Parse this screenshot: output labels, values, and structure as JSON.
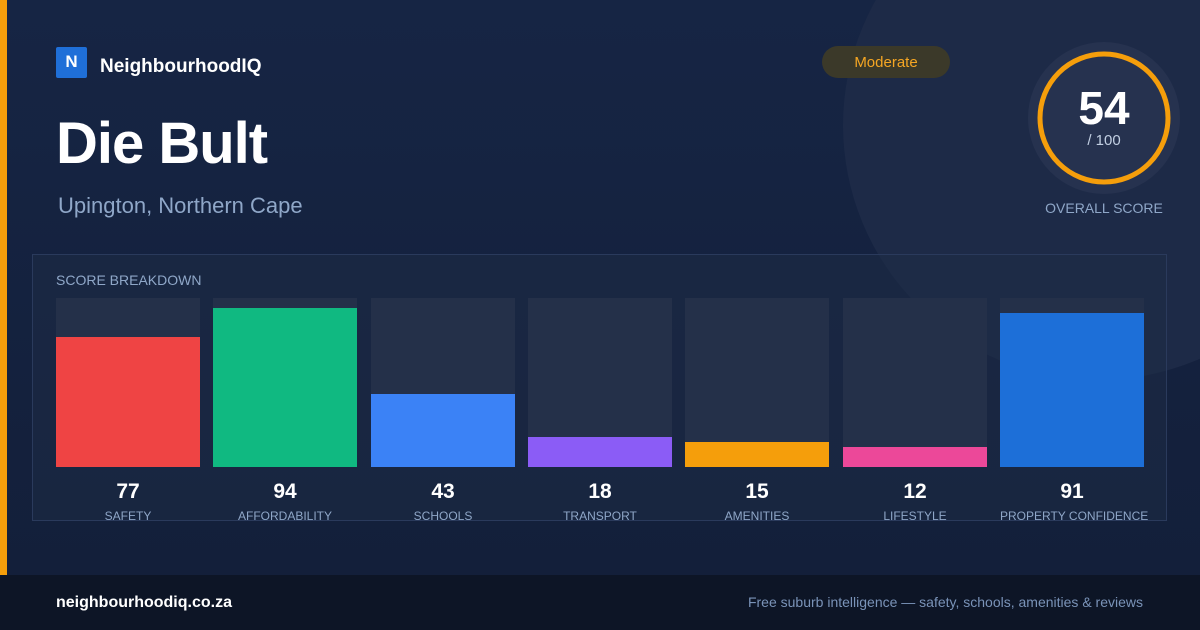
{
  "brand": {
    "logo_letter": "N",
    "name": "NeighbourhoodIQ",
    "logo_color": "#1f6fd8"
  },
  "suburb": {
    "name": "Die Bult",
    "location": "Upington, Northern Cape"
  },
  "rating_badge": {
    "label": "Moderate",
    "color": "#f5a623"
  },
  "overall_score": {
    "value": 54,
    "value_text": "54",
    "max_text": "/ 100",
    "label": "OVERALL SCORE",
    "ring_color": "#f59e0b",
    "max": 100
  },
  "breakdown": {
    "title": "SCORE BREAKDOWN",
    "items": [
      {
        "label": "SAFETY",
        "value": 77,
        "value_text": "77",
        "color": "#ef4444"
      },
      {
        "label": "AFFORDABILITY",
        "value": 94,
        "value_text": "94",
        "color": "#10b981"
      },
      {
        "label": "SCHOOLS",
        "value": 43,
        "value_text": "43",
        "color": "#3b82f6"
      },
      {
        "label": "TRANSPORT",
        "value": 18,
        "value_text": "18",
        "color": "#8b5cf6"
      },
      {
        "label": "AMENITIES",
        "value": 15,
        "value_text": "15",
        "color": "#f59e0b"
      },
      {
        "label": "LIFESTYLE",
        "value": 12,
        "value_text": "12",
        "color": "#ec4899"
      },
      {
        "label": "PROPERTY CONFIDENCE",
        "value": 91,
        "value_text": "91",
        "color": "#1d6fd8"
      }
    ]
  },
  "footer": {
    "url": "neighbourhoodiq.co.za",
    "tagline": "Free suburb intelligence — safety, schools, amenities & reviews"
  },
  "theme": {
    "accent": "#f59e0b",
    "background": "#14213d"
  }
}
